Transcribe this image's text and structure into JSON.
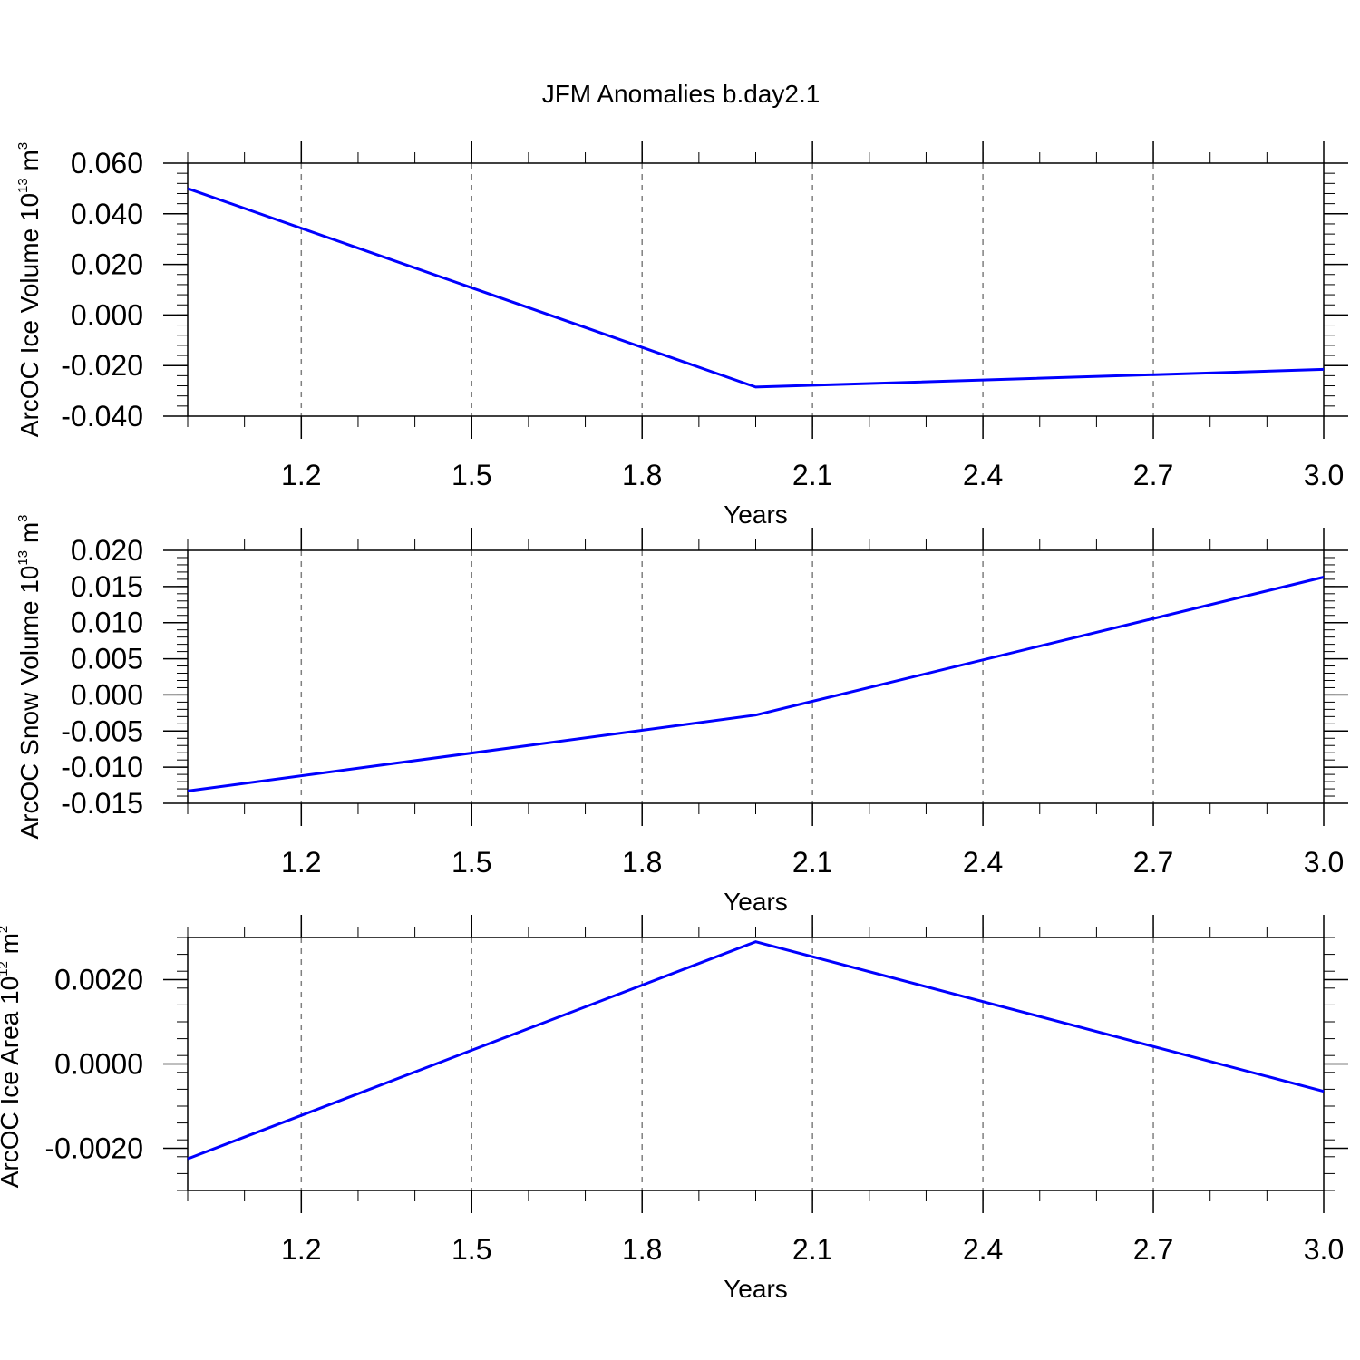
{
  "title": "JFM Anomalies b.day2.1",
  "colors": {
    "line": "#0000ff",
    "axis": "#000000",
    "grid": "#808080"
  },
  "chart_data": [
    {
      "type": "line",
      "xlabel": "Years",
      "ylabel": {
        "prefix": "ArcOC Ice Volume 10",
        "exp": "13",
        "unit": "m",
        "unit_exp": "3"
      },
      "xlim": [
        1.0,
        3.0
      ],
      "ylim": [
        -0.04,
        0.06
      ],
      "xticks": [
        "1.2",
        "1.5",
        "1.8",
        "2.1",
        "2.4",
        "2.7",
        "3.0"
      ],
      "xtick_values": [
        1.2,
        1.5,
        1.8,
        2.1,
        2.4,
        2.7,
        3.0
      ],
      "yticks": [
        "0.060",
        "0.040",
        "0.020",
        "0.000",
        "-0.020",
        "-0.040"
      ],
      "ytick_values": [
        0.06,
        0.04,
        0.02,
        0.0,
        -0.02,
        -0.04
      ],
      "grid": "x-dashed",
      "x": [
        1.0,
        2.0,
        3.0
      ],
      "y": [
        0.05,
        -0.0285,
        -0.0215
      ]
    },
    {
      "type": "line",
      "xlabel": "Years",
      "ylabel": {
        "prefix": "ArcOC Snow Volume 10",
        "exp": "13",
        "unit": "m",
        "unit_exp": "3"
      },
      "xlim": [
        1.0,
        3.0
      ],
      "ylim": [
        -0.015,
        0.02
      ],
      "xticks": [
        "1.2",
        "1.5",
        "1.8",
        "2.1",
        "2.4",
        "2.7",
        "3.0"
      ],
      "xtick_values": [
        1.2,
        1.5,
        1.8,
        2.1,
        2.4,
        2.7,
        3.0
      ],
      "yticks": [
        "0.020",
        "0.015",
        "0.010",
        "0.005",
        "0.000",
        "-0.005",
        "-0.010",
        "-0.015"
      ],
      "ytick_values": [
        0.02,
        0.015,
        0.01,
        0.005,
        0.0,
        -0.005,
        -0.01,
        -0.015
      ],
      "grid": "x-dashed",
      "x": [
        1.0,
        2.0,
        3.0
      ],
      "y": [
        -0.0133,
        -0.0028,
        0.0163
      ]
    },
    {
      "type": "line",
      "xlabel": "Years",
      "ylabel": {
        "prefix": "ArcOC Ice Area 10",
        "exp": "12",
        "unit": "m",
        "unit_exp": "2"
      },
      "xlim": [
        1.0,
        3.0
      ],
      "ylim": [
        -0.003,
        0.003
      ],
      "xticks": [
        "1.2",
        "1.5",
        "1.8",
        "2.1",
        "2.4",
        "2.7",
        "3.0"
      ],
      "xtick_values": [
        1.2,
        1.5,
        1.8,
        2.1,
        2.4,
        2.7,
        3.0
      ],
      "yticks": [
        "0.0020",
        "0.0000",
        "-0.0020"
      ],
      "ytick_values": [
        0.002,
        0.0,
        -0.002
      ],
      "grid": "x-dashed",
      "x": [
        1.0,
        2.0,
        3.0
      ],
      "y": [
        -0.00225,
        0.0029,
        -0.00065
      ]
    }
  ]
}
